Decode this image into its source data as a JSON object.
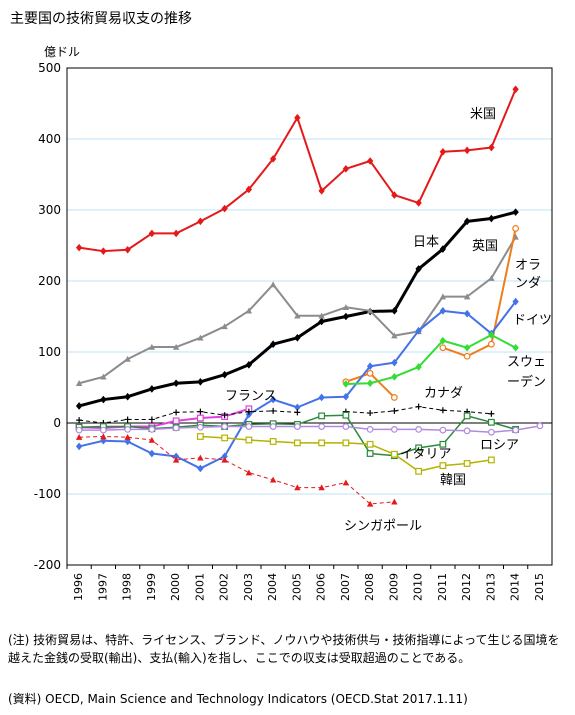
{
  "title": "主要国の技術貿易収支の推移",
  "note": "(注) 技術貿易は、特許、ライセンス、ブランド、ノウハウや技術供与・技術指導によって生じる国境を越えた金銭の受取(輸出)、支払(輸入)を指し、ここでの収支は受取超過のことである。",
  "source": "(資料) OECD, Main Science and Technology Indicators (OECD.Stat 2017.1.11)",
  "chart_data": {
    "type": "line",
    "ylabel": "億ドル",
    "ylim": [
      -200,
      500
    ],
    "yticks": [
      -200,
      -100,
      0,
      100,
      200,
      300,
      400,
      500
    ],
    "x": [
      "1996",
      "1997",
      "1998",
      "1999",
      "2000",
      "2001",
      "2002",
      "2003",
      "2004",
      "2005",
      "2006",
      "2007",
      "2008",
      "2009",
      "2010",
      "2011",
      "2012",
      "2013",
      "2014",
      "2015"
    ],
    "grid": true,
    "series": [
      {
        "name": "米国",
        "color": "#e41a1a",
        "marker": "diamond",
        "dash": "",
        "width": 2,
        "values": [
          247,
          242,
          244,
          267,
          267,
          284,
          302,
          329,
          372,
          430,
          327,
          358,
          369,
          321,
          310,
          382,
          384,
          388,
          470,
          null
        ]
      },
      {
        "name": "日本",
        "color": "#000000",
        "marker": "diamond",
        "dash": "",
        "width": 3,
        "values": [
          24,
          33,
          37,
          48,
          56,
          58,
          68,
          82,
          111,
          120,
          143,
          150,
          157,
          158,
          217,
          245,
          284,
          288,
          297,
          null
        ]
      },
      {
        "name": "英国",
        "color": "#8c8c8c",
        "marker": "triangle",
        "dash": "",
        "width": 2,
        "values": [
          56,
          65,
          90,
          107,
          107,
          120,
          136,
          158,
          195,
          151,
          151,
          163,
          158,
          123,
          129,
          178,
          178,
          204,
          262,
          null
        ]
      },
      {
        "name": "オランダ",
        "color": "#f07d1a",
        "marker": "circle",
        "dash": "",
        "width": 2,
        "values": [
          null,
          null,
          null,
          null,
          null,
          null,
          null,
          null,
          null,
          null,
          null,
          58,
          70,
          36,
          null,
          106,
          94,
          111,
          274,
          null
        ]
      },
      {
        "name": "ドイツ",
        "color": "#4472e8",
        "marker": "diamond",
        "dash": "",
        "width": 2,
        "values": [
          -33,
          -25,
          -26,
          -43,
          -47,
          -64,
          -47,
          12,
          33,
          22,
          36,
          37,
          80,
          85,
          130,
          158,
          154,
          126,
          171,
          null
        ]
      },
      {
        "name": "スウェーデン",
        "color": "#33dd33",
        "marker": "diamond",
        "dash": "",
        "width": 2,
        "values": [
          null,
          null,
          null,
          null,
          null,
          null,
          null,
          null,
          null,
          null,
          null,
          55,
          56,
          65,
          79,
          116,
          106,
          124,
          106,
          null
        ]
      },
      {
        "name": "フランス",
        "color": "#e040e0",
        "marker": "square",
        "dash": "",
        "width": 2,
        "values": [
          -6,
          -7,
          -5,
          -5,
          3,
          7,
          9,
          20,
          null,
          null,
          null,
          null,
          null,
          null,
          null,
          null,
          null,
          null,
          null,
          null
        ]
      },
      {
        "name": "カナダ",
        "color": "#000000",
        "marker": "plus",
        "dash": "4,3",
        "width": 1,
        "values": [
          4,
          0,
          5,
          5,
          15,
          16,
          11,
          16,
          17,
          15,
          null,
          16,
          14,
          17,
          23,
          18,
          16,
          13,
          null,
          null
        ]
      },
      {
        "name": "イタリア",
        "color": "#2a8a3a",
        "marker": "square",
        "dash": "",
        "width": 1.5,
        "values": [
          -6,
          -5,
          -5,
          -8,
          -6,
          -3,
          -5,
          -2,
          -1,
          -2,
          10,
          11,
          -43,
          -46,
          -35,
          -30,
          10,
          1,
          -9,
          null
        ]
      },
      {
        "name": "ロシア",
        "color": "#b08ae0",
        "marker": "circle",
        "dash": "",
        "width": 1.5,
        "values": [
          -10,
          -10,
          -9,
          -9,
          -7,
          -6,
          -5,
          -5,
          -5,
          -5,
          -5,
          -5,
          -9,
          -9,
          -9,
          -10,
          -11,
          -13,
          -10,
          -4
        ]
      },
      {
        "name": "韓国",
        "color": "#b3b300",
        "marker": "square",
        "dash": "",
        "width": 1.5,
        "values": [
          null,
          null,
          null,
          null,
          null,
          -19,
          -21,
          -24,
          -26,
          -28,
          -28,
          -28,
          -30,
          -44,
          -68,
          -60,
          -57,
          -52,
          null,
          null
        ]
      },
      {
        "name": "シンガポール",
        "color": "#e41a1a",
        "marker": "triangle",
        "dash": "4,3",
        "width": 1,
        "values": [
          -20,
          -19,
          -20,
          -24,
          -52,
          -49,
          -52,
          -70,
          -80,
          -91,
          -91,
          -84,
          -114,
          -111,
          null,
          null,
          null,
          null,
          null,
          null
        ]
      }
    ],
    "labels": [
      {
        "text": "米国",
        "series": 0
      },
      {
        "text": "日本",
        "series": 1
      },
      {
        "text": "英国",
        "series": 2
      },
      {
        "text": "オラ",
        "series": 3
      },
      {
        "text": "ンダ",
        "series": 3
      },
      {
        "text": "ドイツ",
        "series": 4
      },
      {
        "text": "スウェ",
        "series": 5
      },
      {
        "text": "ーデン",
        "series": 5
      },
      {
        "text": "フランス",
        "series": 6
      },
      {
        "text": "カナダ",
        "series": 7
      },
      {
        "text": "ロシア",
        "series": 9
      },
      {
        "text": "イタリア",
        "series": 8
      },
      {
        "text": "韓国",
        "series": 10
      },
      {
        "text": "シンガポール",
        "series": 11
      }
    ]
  }
}
